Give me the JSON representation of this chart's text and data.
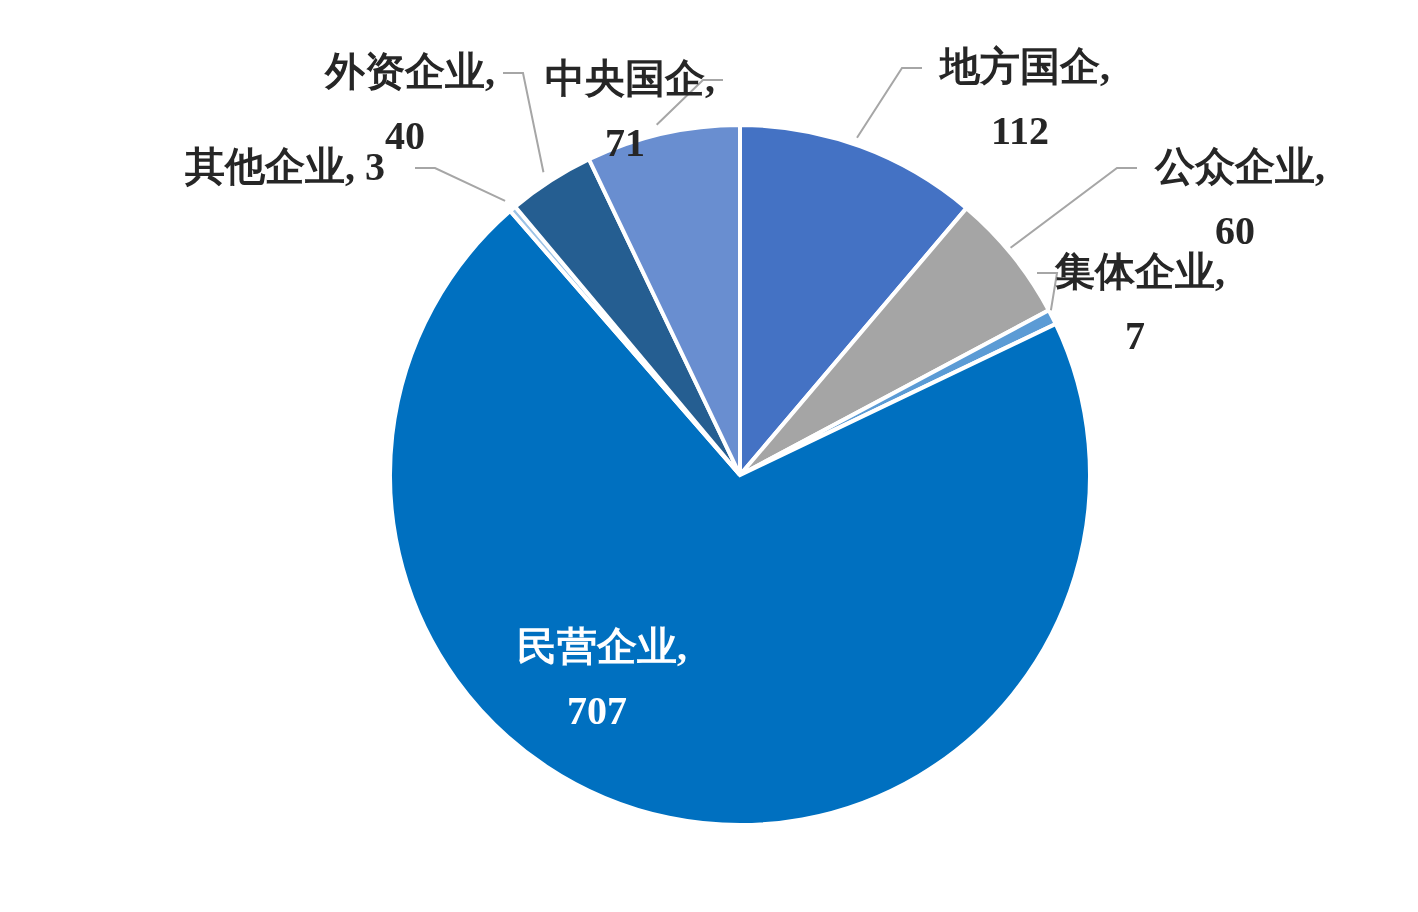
{
  "chart_data": {
    "type": "pie",
    "categories": [
      "地方国企",
      "公众企业",
      "集体企业",
      "民营企业",
      "其他企业",
      "外资企业",
      "中央国企"
    ],
    "values": [
      112,
      60,
      7,
      707,
      3,
      40,
      71
    ],
    "colors": [
      "#4472c4",
      "#a5a5a5",
      "#5b9bd5",
      "#0070c0",
      "#9dc3e6",
      "#255e91",
      "#698ed0"
    ],
    "value_labels": [
      ", 112",
      ", 60",
      ", 7",
      ", 707",
      ", 3",
      ", 40",
      ", 71"
    ],
    "legend": false
  }
}
